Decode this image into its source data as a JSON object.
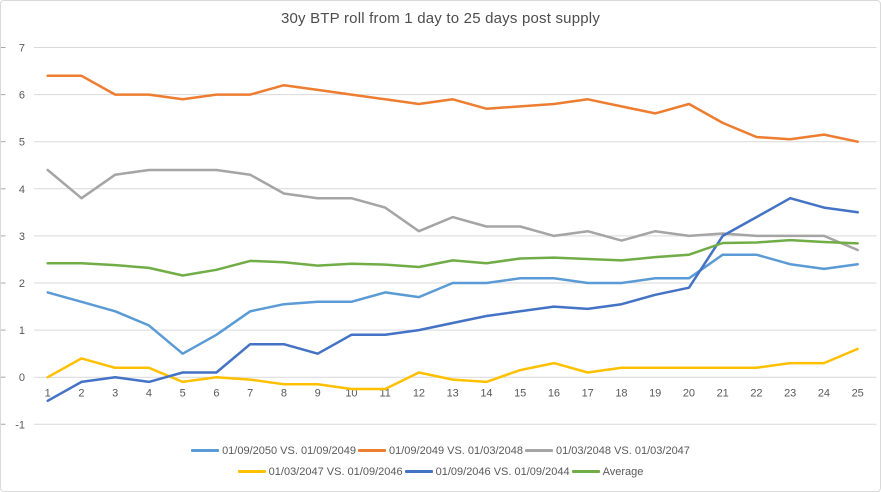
{
  "title": "30y BTP roll from 1 day to 25 days post supply",
  "colors": {
    "background": "#FFFFFF",
    "border": "#D9D9D9",
    "gridline": "#D9D9D9",
    "tick_mark": "#A6A6A6",
    "axis_text": "#595959",
    "title_text": "#4D4D4D"
  },
  "chart_data": {
    "type": "line",
    "title": "30y BTP roll from 1 day to 25 days post supply",
    "xlabel": "",
    "ylabel": "",
    "x": [
      1,
      2,
      3,
      4,
      5,
      6,
      7,
      8,
      9,
      10,
      11,
      12,
      13,
      14,
      15,
      16,
      17,
      18,
      19,
      20,
      21,
      22,
      23,
      24,
      25
    ],
    "ylim": [
      -1,
      7
    ],
    "yticks": [
      -1,
      0,
      1,
      2,
      3,
      4,
      5,
      6,
      7
    ],
    "grid": true,
    "legend_position": "bottom-two-rows",
    "series": [
      {
        "name": "01/09/2050 VS. 01/09/2049",
        "color": "#5B9BD5",
        "values": [
          1.8,
          1.6,
          1.4,
          1.1,
          0.5,
          0.9,
          1.4,
          1.55,
          1.6,
          1.6,
          1.8,
          1.7,
          2.0,
          2.0,
          2.1,
          2.1,
          2.0,
          2.0,
          2.1,
          2.1,
          2.6,
          2.6,
          2.4,
          2.3,
          2.4
        ]
      },
      {
        "name": "01/09/2049 VS. 01/03/2048",
        "color": "#ED7D31",
        "values": [
          6.4,
          6.4,
          6.0,
          6.0,
          5.9,
          6.0,
          6.0,
          6.2,
          6.1,
          6.0,
          5.9,
          5.8,
          5.9,
          5.7,
          5.75,
          5.8,
          5.9,
          5.75,
          5.6,
          5.8,
          5.4,
          5.1,
          5.05,
          5.15,
          5.0
        ]
      },
      {
        "name": "01/03/2048 VS. 01/03/2047",
        "color": "#A5A5A5",
        "values": [
          4.4,
          3.8,
          4.3,
          4.4,
          4.4,
          4.4,
          4.3,
          3.9,
          3.8,
          3.8,
          3.6,
          3.1,
          3.4,
          3.2,
          3.2,
          3.0,
          3.1,
          2.9,
          3.1,
          3.0,
          3.05,
          3.0,
          3.0,
          3.0,
          2.7
        ]
      },
      {
        "name": "01/03/2047 VS. 01/09/2046",
        "color": "#FFC000",
        "values": [
          0.0,
          0.4,
          0.2,
          0.2,
          -0.1,
          0.0,
          -0.05,
          -0.15,
          -0.15,
          -0.25,
          -0.25,
          0.1,
          -0.05,
          -0.1,
          0.15,
          0.3,
          0.1,
          0.2,
          0.2,
          0.2,
          0.2,
          0.2,
          0.3,
          0.3,
          0.6
        ]
      },
      {
        "name": "01/09/2046 VS. 01/09/2044",
        "color": "#4472C4",
        "values": [
          -0.5,
          -0.1,
          0.0,
          -0.1,
          0.1,
          0.1,
          0.7,
          0.7,
          0.5,
          0.9,
          0.9,
          1.0,
          1.15,
          1.3,
          1.4,
          1.5,
          1.45,
          1.55,
          1.75,
          1.9,
          3.0,
          3.4,
          3.8,
          3.6,
          3.5
        ]
      },
      {
        "name": "Average",
        "color": "#70AD47",
        "values": [
          2.42,
          2.42,
          2.38,
          2.32,
          2.16,
          2.28,
          2.47,
          2.44,
          2.37,
          2.41,
          2.39,
          2.34,
          2.48,
          2.42,
          2.52,
          2.54,
          2.51,
          2.48,
          2.55,
          2.6,
          2.85,
          2.86,
          2.91,
          2.87,
          2.84
        ]
      }
    ]
  }
}
